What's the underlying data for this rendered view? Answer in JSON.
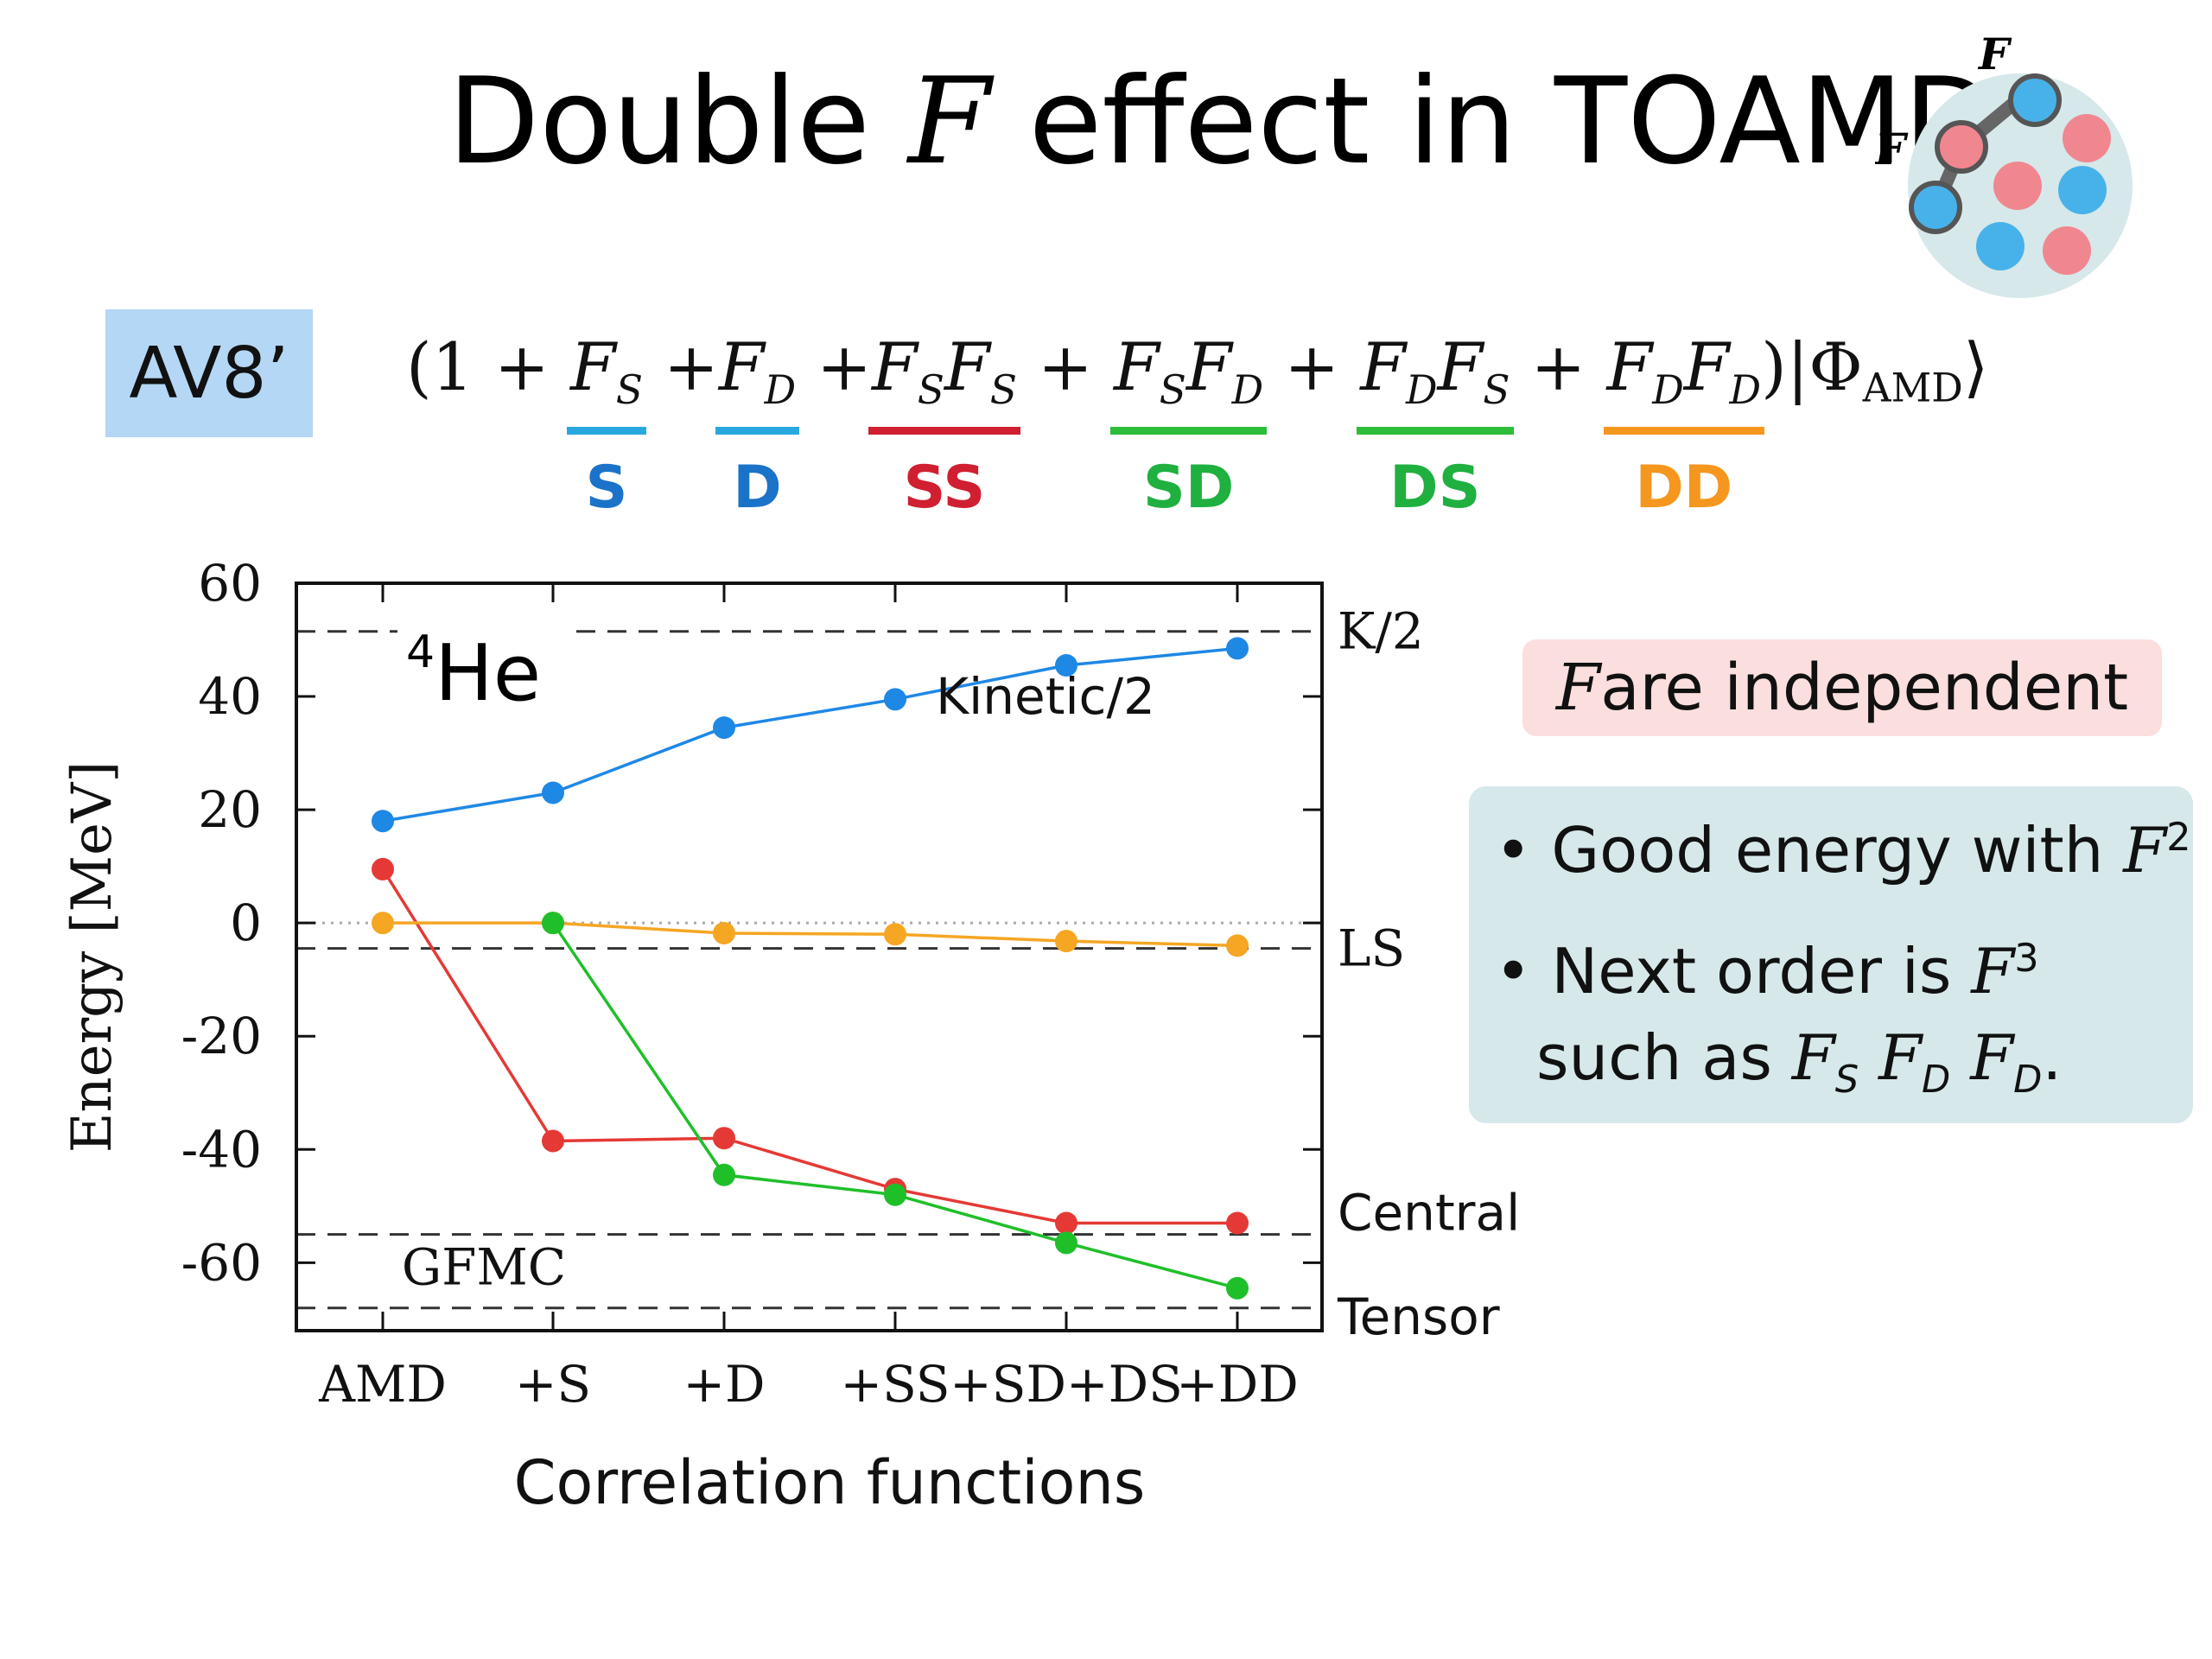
{
  "slide": {
    "title_pre": "Double ",
    "title_f": "F",
    "title_post": " effect in TOAMD",
    "badge": "AV8’",
    "formula": {
      "open": "(1 + ",
      "terms": [
        {
          "sign": "",
          "f1": "F",
          "s1": "S",
          "f2": "",
          "s2": ""
        },
        {
          "sign": " +",
          "f1": "F",
          "s1": "D",
          "f2": "",
          "s2": ""
        },
        {
          "sign": " +",
          "f1": "F",
          "s1": "S",
          "f2": "F",
          "s2": "S"
        },
        {
          "sign": " + ",
          "f1": "F",
          "s1": "S",
          "f2": "F",
          "s2": "D"
        },
        {
          "sign": " + ",
          "f1": "F",
          "s1": "D",
          "f2": "F",
          "s2": "S"
        },
        {
          "sign": " + ",
          "f1": "F",
          "s1": "D",
          "f2": "F",
          "s2": "D"
        }
      ],
      "close": ")|Φ",
      "close_sub": "AMD",
      "close_end": "⟩"
    },
    "term_labels": [
      {
        "text": "S",
        "color": "#1a73c8",
        "underline": "#29a8e0"
      },
      {
        "text": "D",
        "color": "#1a73c8",
        "underline": "#29a8e0"
      },
      {
        "text": "SS",
        "color": "#d01f30",
        "underline": "#d01f30"
      },
      {
        "text": "SD",
        "color": "#1fb040",
        "underline": "#2dbd38"
      },
      {
        "text": "DS",
        "color": "#1fb040",
        "underline": "#2dbd38"
      },
      {
        "text": "DD",
        "color": "#f5961e",
        "underline": "#f5961e"
      }
    ],
    "independent_f": "F",
    "independent_text": " are independent",
    "bullets": {
      "b1_text": "• Good energy with ",
      "b1_f": "F",
      "b1_sup": "2",
      "b2_text": "• Next order is ",
      "b2_f": "F",
      "b2_sup": "3",
      "b3_text": "such as ",
      "b3_f1": "F",
      "b3_s1": "S",
      "b3_f2": "F",
      "b3_s2": "D",
      "b3_f3": "F",
      "b3_s3": "D",
      "b3_end": "."
    },
    "logo_labels": [
      "F",
      "F"
    ]
  },
  "chart_data": {
    "type": "line",
    "categories": [
      "AMD",
      "+S",
      "+D",
      "+SS",
      "+SD+DS",
      "+DD"
    ],
    "xlabel": "Correlation functions",
    "ylabel": "Energy [MeV]",
    "ylim": [
      -72,
      60
    ],
    "yticks": [
      60,
      40,
      20,
      0,
      -20,
      -40,
      -60
    ],
    "nucleus_mass": "4",
    "nucleus_symbol": "He",
    "gfmc_label": "GFMC",
    "series": [
      {
        "name": "Kinetic/2",
        "color": "#1e88e5",
        "values": [
          18,
          23,
          34.5,
          39.5,
          45.5,
          48.5
        ]
      },
      {
        "color": "#e53935",
        "values": [
          9.5,
          -38.5,
          -38,
          -47,
          -53,
          -53
        ]
      },
      {
        "color": "#f5a623",
        "values": [
          0,
          0,
          -1.8,
          -2,
          -3.2,
          -4
        ]
      },
      {
        "color": "#1fbf2a",
        "values": [
          null,
          0,
          -44.5,
          -48,
          -56.5,
          -64.5
        ]
      }
    ],
    "reference_lines": [
      {
        "label": "K/2",
        "value": 51.5
      },
      {
        "label": "LS",
        "value": -4.5
      },
      {
        "label": "Central",
        "value": -55
      },
      {
        "label": "Tensor",
        "value": -68
      }
    ],
    "zero_line": "dotted"
  }
}
